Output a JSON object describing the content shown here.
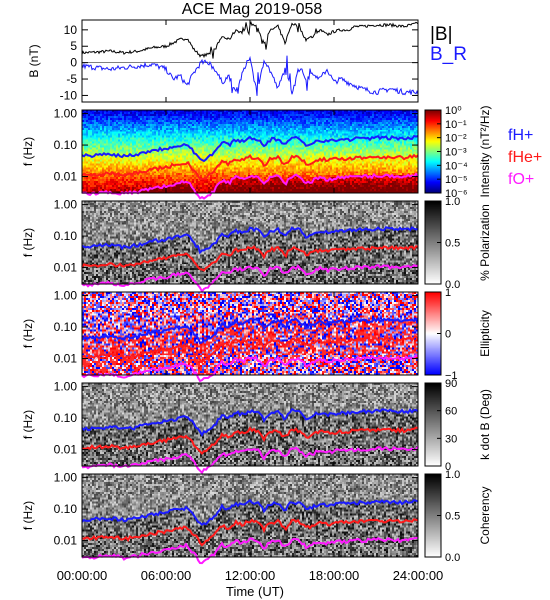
{
  "chart_data": {
    "type": "line",
    "title": "ACE Mag 2019-058",
    "xlabel": "Time (UT)",
    "x_ticks": [
      "00:00:00",
      "06:00:00",
      "12:00:00",
      "18:00:00",
      "24:00:00"
    ],
    "x_range_hours": [
      0,
      24
    ],
    "colors": {
      "B": "#000000",
      "BR": "#1a1aff",
      "fH": "#1a1aff",
      "fHe": "#ff1a1a",
      "fO": "#ff1aff"
    },
    "panels": [
      {
        "id": "field",
        "ylabel": "B (nT)",
        "yticks": [
          "10",
          "5",
          "0",
          "-5",
          "-10"
        ],
        "ylim": [
          -12,
          13
        ],
        "legend": [
          "|B|",
          "B_R"
        ],
        "series": [
          {
            "name": "|B|",
            "color_key": "B",
            "hours": [
              0,
              1,
              2,
              3,
              4,
              5,
              6,
              6.5,
              7,
              7.5,
              8,
              8.5,
              9,
              9.5,
              10,
              10.5,
              11,
              11.5,
              12,
              12.5,
              13,
              13.5,
              14,
              14.5,
              15,
              15.5,
              16,
              16.5,
              17,
              17.5,
              18,
              18.5,
              19,
              19.5,
              20,
              21,
              22,
              23,
              24
            ],
            "values": [
              3,
              3.2,
              3.5,
              3,
              3.5,
              4.5,
              5,
              6,
              7,
              7.5,
              4,
              2,
              2.5,
              4,
              8,
              7,
              10,
              9,
              12,
              11,
              6,
              10,
              11,
              6,
              12,
              11,
              7,
              8,
              10,
              8.5,
              9.5,
              10,
              10,
              11,
              11,
              11.5,
              11.5,
              11,
              12
            ]
          },
          {
            "name": "B_R",
            "color_key": "BR",
            "hours": [
              0,
              1,
              2,
              3,
              4,
              5,
              6,
              6.5,
              7,
              7.5,
              8,
              8.5,
              9,
              9.5,
              10,
              10.5,
              11,
              11.5,
              12,
              12.5,
              13,
              13.5,
              14,
              14.5,
              15,
              15.5,
              16,
              16.5,
              17,
              17.5,
              18,
              18.5,
              19,
              19.5,
              20,
              21,
              22,
              23,
              24
            ],
            "values": [
              -1,
              -1.5,
              -2,
              -1.5,
              -1,
              -0.5,
              -2,
              -5,
              -4,
              -7,
              -3,
              0,
              0,
              -2,
              -6,
              -4,
              -9,
              -3,
              2,
              -10,
              1,
              -3,
              -8,
              -2,
              -9,
              -1,
              -5,
              -3,
              -5,
              -2,
              -6,
              -5,
              -6,
              -7,
              -8,
              -9,
              -8,
              -9,
              -9
            ]
          }
        ]
      },
      {
        "id": "intensity",
        "ylabel": "f (Hz)",
        "yticks": [
          "1.00",
          "0.10",
          "0.01"
        ],
        "colorbar": {
          "kind": "intensity",
          "label": "Intensity (nT²/Hz)",
          "labels": [
            "10⁰",
            "10⁻¹",
            "10⁻²",
            "10⁻³",
            "10⁻⁴",
            "10⁻⁵",
            "10⁻⁶"
          ]
        },
        "legend": [
          "fH+",
          "fHe+",
          "fO+"
        ]
      },
      {
        "id": "polarization",
        "ylabel": "f (Hz)",
        "yticks": [
          "1.00",
          "0.10",
          "0.01"
        ],
        "colorbar": {
          "kind": "gray",
          "label": "% Polarization",
          "labels": [
            "1.0",
            "0.5",
            "0.0"
          ]
        }
      },
      {
        "id": "ellipticity",
        "ylabel": "f (Hz)",
        "yticks": [
          "1.00",
          "0.10",
          "0.01"
        ],
        "colorbar": {
          "kind": "diverging",
          "label": "Ellipticity",
          "labels": [
            "1",
            "0",
            "−1"
          ]
        }
      },
      {
        "id": "kdotb",
        "ylabel": "f (Hz)",
        "yticks": [
          "1.00",
          "0.10",
          "0.01"
        ],
        "colorbar": {
          "kind": "gray",
          "label": "k dot B (Deg)",
          "labels": [
            "90",
            "60",
            "30",
            "0"
          ]
        }
      },
      {
        "id": "coherency",
        "ylabel": "f (Hz)",
        "yticks": [
          "1.00",
          "0.10",
          "0.01"
        ],
        "colorbar": {
          "kind": "gray",
          "label": "Coherency",
          "labels": [
            "1.0",
            "0.5",
            "0.0"
          ]
        }
      }
    ],
    "gyrofrequencies": {
      "hours": [
        0,
        1,
        2,
        3,
        4,
        5,
        6,
        6.5,
        7,
        7.5,
        8,
        8.5,
        9,
        9.5,
        10,
        10.5,
        11,
        11.5,
        12,
        12.5,
        13,
        13.5,
        14,
        14.5,
        15,
        15.5,
        16,
        16.5,
        17,
        17.5,
        18,
        18.5,
        19,
        19.5,
        20,
        21,
        22,
        23,
        24
      ],
      "fH_Hz": [
        0.045,
        0.048,
        0.052,
        0.045,
        0.052,
        0.068,
        0.078,
        0.09,
        0.1,
        0.11,
        0.06,
        0.03,
        0.04,
        0.06,
        0.12,
        0.1,
        0.15,
        0.13,
        0.17,
        0.16,
        0.09,
        0.15,
        0.16,
        0.09,
        0.17,
        0.16,
        0.1,
        0.12,
        0.15,
        0.13,
        0.14,
        0.15,
        0.15,
        0.16,
        0.16,
        0.17,
        0.17,
        0.16,
        0.18
      ],
      "fHe_Hz": [
        0.0112,
        0.012,
        0.013,
        0.0112,
        0.013,
        0.017,
        0.0195,
        0.0225,
        0.025,
        0.0275,
        0.015,
        0.0075,
        0.01,
        0.015,
        0.03,
        0.025,
        0.0375,
        0.0325,
        0.0425,
        0.04,
        0.0225,
        0.0375,
        0.04,
        0.0225,
        0.0425,
        0.04,
        0.025,
        0.03,
        0.0375,
        0.0325,
        0.035,
        0.0375,
        0.0375,
        0.04,
        0.04,
        0.0425,
        0.0425,
        0.04,
        0.045
      ],
      "fO_Hz": [
        0.0028,
        0.003,
        0.0033,
        0.0028,
        0.0033,
        0.0043,
        0.0049,
        0.0056,
        0.0063,
        0.0069,
        0.0038,
        0.0019,
        0.0025,
        0.0038,
        0.0075,
        0.0063,
        0.0094,
        0.0081,
        0.0106,
        0.01,
        0.0056,
        0.0094,
        0.01,
        0.0056,
        0.0106,
        0.01,
        0.0063,
        0.0075,
        0.0094,
        0.0081,
        0.0088,
        0.0094,
        0.0094,
        0.01,
        0.01,
        0.0106,
        0.0106,
        0.01,
        0.0113
      ],
      "frange_Hz": [
        0.003,
        1.3
      ]
    }
  }
}
